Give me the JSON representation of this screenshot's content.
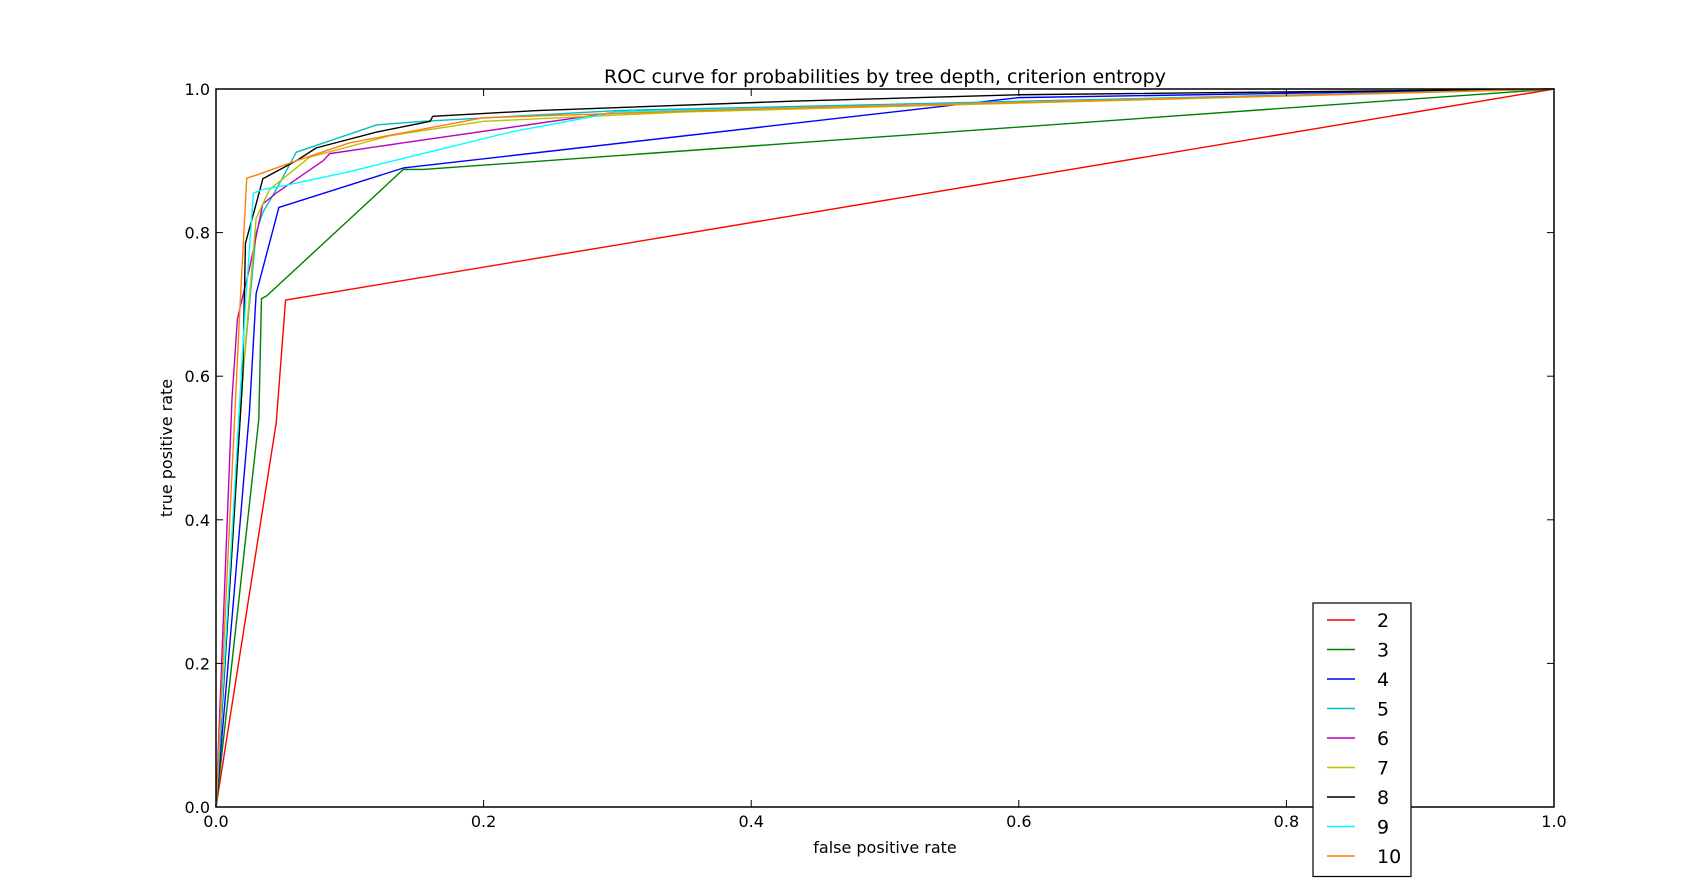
{
  "chart_data": {
    "type": "line",
    "title": "ROC curve for probabilities by tree depth, criterion entropy",
    "xlabel": "false positive rate",
    "ylabel": "true positive rate",
    "xlim": [
      0,
      1
    ],
    "ylim": [
      0,
      1
    ],
    "xticks": [
      "0.0",
      "0.2",
      "0.4",
      "0.6",
      "0.8",
      "1.0"
    ],
    "yticks": [
      "0.0",
      "0.2",
      "0.4",
      "0.6",
      "0.8",
      "1.0"
    ],
    "grid": false,
    "legend_position": "lower-right",
    "series": [
      {
        "name": "2",
        "color": "#ff0000",
        "points": [
          [
            0,
            0
          ],
          [
            0.045,
            0.535
          ],
          [
            0.052,
            0.706
          ],
          [
            1,
            1
          ]
        ]
      },
      {
        "name": "3",
        "color": "#008000",
        "points": [
          [
            0,
            0
          ],
          [
            0.032,
            0.54
          ],
          [
            0.034,
            0.708
          ],
          [
            0.038,
            0.712
          ],
          [
            0.14,
            0.888
          ],
          [
            0.155,
            0.888
          ],
          [
            1,
            1
          ]
        ]
      },
      {
        "name": "4",
        "color": "#0000ff",
        "points": [
          [
            0,
            0
          ],
          [
            0.025,
            0.55
          ],
          [
            0.03,
            0.715
          ],
          [
            0.047,
            0.835
          ],
          [
            0.14,
            0.89
          ],
          [
            0.6,
            0.988
          ],
          [
            1,
            1
          ]
        ]
      },
      {
        "name": "5",
        "color": "#00bfbf",
        "points": [
          [
            0,
            0
          ],
          [
            0.02,
            0.6
          ],
          [
            0.03,
            0.8
          ],
          [
            0.035,
            0.828
          ],
          [
            0.045,
            0.86
          ],
          [
            0.06,
            0.912
          ],
          [
            0.12,
            0.95
          ],
          [
            0.155,
            0.955
          ],
          [
            0.3,
            0.97
          ],
          [
            1,
            1
          ]
        ]
      },
      {
        "name": "6",
        "color": "#bf00bf",
        "points": [
          [
            0,
            0
          ],
          [
            0.012,
            0.57
          ],
          [
            0.016,
            0.68
          ],
          [
            0.025,
            0.75
          ],
          [
            0.035,
            0.84
          ],
          [
            0.045,
            0.855
          ],
          [
            0.08,
            0.9
          ],
          [
            0.085,
            0.91
          ],
          [
            0.14,
            0.925
          ],
          [
            0.3,
            0.968
          ],
          [
            1,
            1
          ]
        ]
      },
      {
        "name": "7",
        "color": "#bfbf00",
        "points": [
          [
            0,
            0
          ],
          [
            0.02,
            0.6
          ],
          [
            0.03,
            0.82
          ],
          [
            0.04,
            0.86
          ],
          [
            0.07,
            0.905
          ],
          [
            0.13,
            0.935
          ],
          [
            0.2,
            0.955
          ],
          [
            0.35,
            0.968
          ],
          [
            1,
            1
          ]
        ]
      },
      {
        "name": "8",
        "color": "#000000",
        "points": [
          [
            0,
            0
          ],
          [
            0.02,
            0.6
          ],
          [
            0.022,
            0.785
          ],
          [
            0.03,
            0.84
          ],
          [
            0.035,
            0.875
          ],
          [
            0.06,
            0.9
          ],
          [
            0.075,
            0.918
          ],
          [
            0.12,
            0.94
          ],
          [
            0.16,
            0.955
          ],
          [
            0.162,
            0.962
          ],
          [
            0.24,
            0.97
          ],
          [
            0.43,
            0.983
          ],
          [
            0.6,
            0.992
          ],
          [
            1,
            1
          ]
        ]
      },
      {
        "name": "9",
        "color": "#00ffff",
        "points": [
          [
            0,
            0
          ],
          [
            0.022,
            0.7
          ],
          [
            0.028,
            0.855
          ],
          [
            0.035,
            0.86
          ],
          [
            0.05,
            0.865
          ],
          [
            0.1,
            0.885
          ],
          [
            0.22,
            0.94
          ],
          [
            0.3,
            0.968
          ],
          [
            1,
            1
          ]
        ]
      },
      {
        "name": "10",
        "color": "#ff7f0e",
        "points": [
          [
            0,
            0
          ],
          [
            0.018,
            0.7
          ],
          [
            0.023,
            0.876
          ],
          [
            0.03,
            0.88
          ],
          [
            0.06,
            0.9
          ],
          [
            0.1,
            0.925
          ],
          [
            0.2,
            0.96
          ],
          [
            0.4,
            0.972
          ],
          [
            1,
            1
          ]
        ]
      }
    ]
  }
}
